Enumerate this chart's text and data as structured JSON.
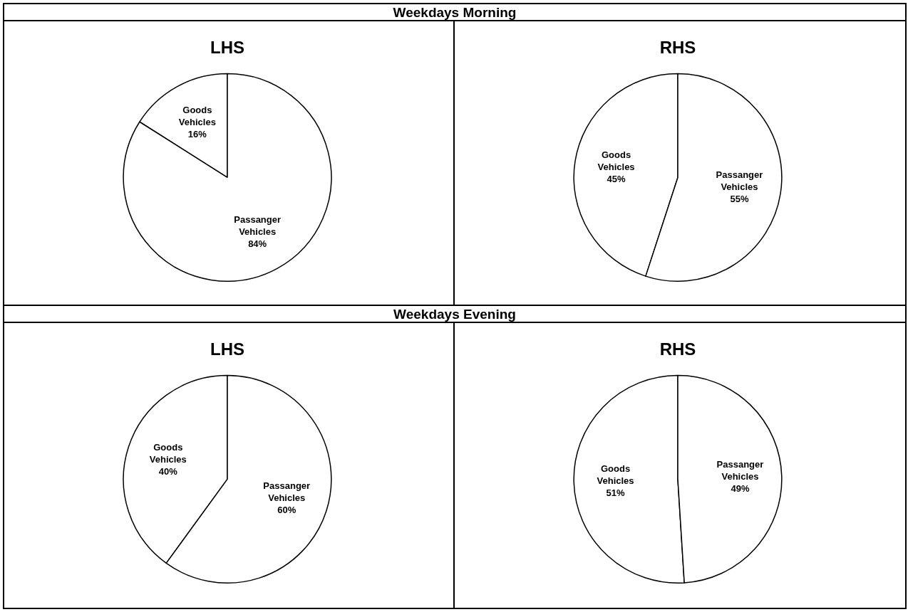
{
  "chart_data": [
    {
      "type": "other",
      "title": "Weekdays Morning"
    },
    {
      "type": "pie",
      "title": "LHS",
      "categories": [
        "Goods Vehicles",
        "Passanger Vehicles"
      ],
      "values": [
        16,
        84
      ],
      "colors": [
        "#ffffff",
        "#ffffff"
      ],
      "value_labels": [
        "16%",
        "84%"
      ]
    },
    {
      "type": "pie",
      "title": "RHS",
      "categories": [
        "Goods Vehicles",
        "Passanger Vehicles"
      ],
      "values": [
        45,
        55
      ],
      "colors": [
        "#ffffff",
        "#ffffff"
      ],
      "value_labels": [
        "45%",
        "55%"
      ]
    },
    {
      "type": "other",
      "title": "Weekdays Evening"
    },
    {
      "type": "pie",
      "title": "LHS",
      "categories": [
        "Goods Vehicles",
        "Passanger Vehicles"
      ],
      "values": [
        40,
        60
      ],
      "colors": [
        "#ffffff",
        "#ffffff"
      ],
      "value_labels": [
        "40%",
        "60%"
      ]
    },
    {
      "type": "pie",
      "title": "RHS",
      "categories": [
        "Goods Vehicles",
        "Passanger Vehicles"
      ],
      "values": [
        51,
        49
      ],
      "colors": [
        "#ffffff",
        "#ffffff"
      ],
      "value_labels": [
        "51%",
        "49%"
      ]
    }
  ]
}
